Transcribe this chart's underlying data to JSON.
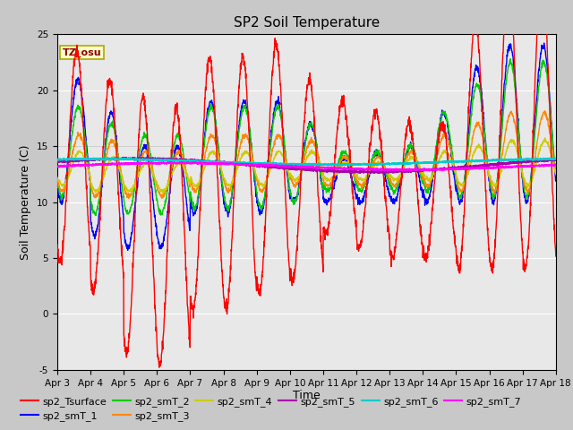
{
  "title": "SP2 Soil Temperature",
  "xlabel": "Time",
  "ylabel": "Soil Temperature (C)",
  "ylim": [
    -5,
    25
  ],
  "x_tick_labels": [
    "Apr 3",
    "Apr 4",
    "Apr 5",
    "Apr 6",
    "Apr 7",
    "Apr 8",
    "Apr 9",
    "Apr 10",
    "Apr 11",
    "Apr 12",
    "Apr 13",
    "Apr 14",
    "Apr 15",
    "Apr 16",
    "Apr 17",
    "Apr 18"
  ],
  "annotation": "TZ_osu",
  "annotation_color": "#8B0000",
  "annotation_bg": "#FFFFCC",
  "colors": {
    "sp2_Tsurface": "#FF0000",
    "sp2_smT_1": "#0000FF",
    "sp2_smT_2": "#00CC00",
    "sp2_smT_3": "#FF8800",
    "sp2_smT_4": "#CCCC00",
    "sp2_smT_5": "#AA00AA",
    "sp2_smT_6": "#00CCCC",
    "sp2_smT_7": "#FF00FF"
  },
  "bg_color": "#E8E8E8",
  "grid_color": "#FFFFFF",
  "title_fontsize": 11,
  "label_fontsize": 9,
  "tick_fontsize": 7.5,
  "legend_fontsize": 8
}
